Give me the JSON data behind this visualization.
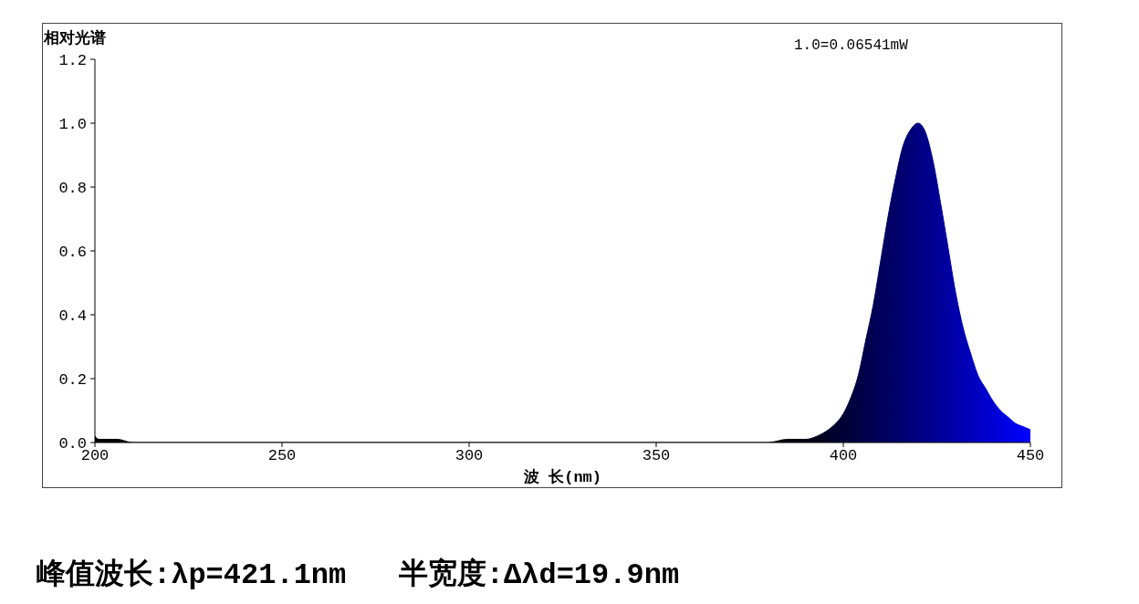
{
  "chart_data": {
    "type": "area",
    "ylabel": "相对光谱",
    "xlabel": "波 长(nm)",
    "annotations": [
      "1.0=0.06541mW",
      "峰值波长:λp=421.1nm   半宽度:Δλd=19.9nm"
    ],
    "x": [
      200,
      201,
      203,
      206,
      210,
      220,
      250,
      300,
      350,
      380,
      385,
      390,
      393,
      396,
      398,
      400,
      402,
      404,
      406,
      408,
      410,
      412,
      414,
      416,
      418,
      420,
      422,
      424,
      426,
      428,
      430,
      432,
      434,
      436,
      438,
      440,
      442,
      444,
      446,
      448,
      450
    ],
    "values": [
      0.02,
      0.01,
      0.01,
      0.01,
      0,
      0,
      0,
      0,
      0,
      0,
      0.01,
      0.01,
      0.02,
      0.04,
      0.06,
      0.09,
      0.14,
      0.21,
      0.32,
      0.43,
      0.57,
      0.71,
      0.83,
      0.93,
      0.98,
      1.0,
      0.97,
      0.88,
      0.75,
      0.61,
      0.47,
      0.36,
      0.28,
      0.21,
      0.17,
      0.13,
      0.1,
      0.08,
      0.06,
      0.05,
      0.04
    ],
    "color": "#0000a0",
    "xlim": [
      200,
      450
    ],
    "xticks": [
      200,
      250,
      300,
      350,
      400,
      450
    ],
    "ylim": [
      0,
      1.2
    ],
    "yticks": [
      {
        "value": 0,
        "label": "0.0"
      },
      0.2,
      0.4,
      0.6,
      0.8,
      {
        "value": 1,
        "label": "1.0"
      },
      1.2
    ]
  }
}
